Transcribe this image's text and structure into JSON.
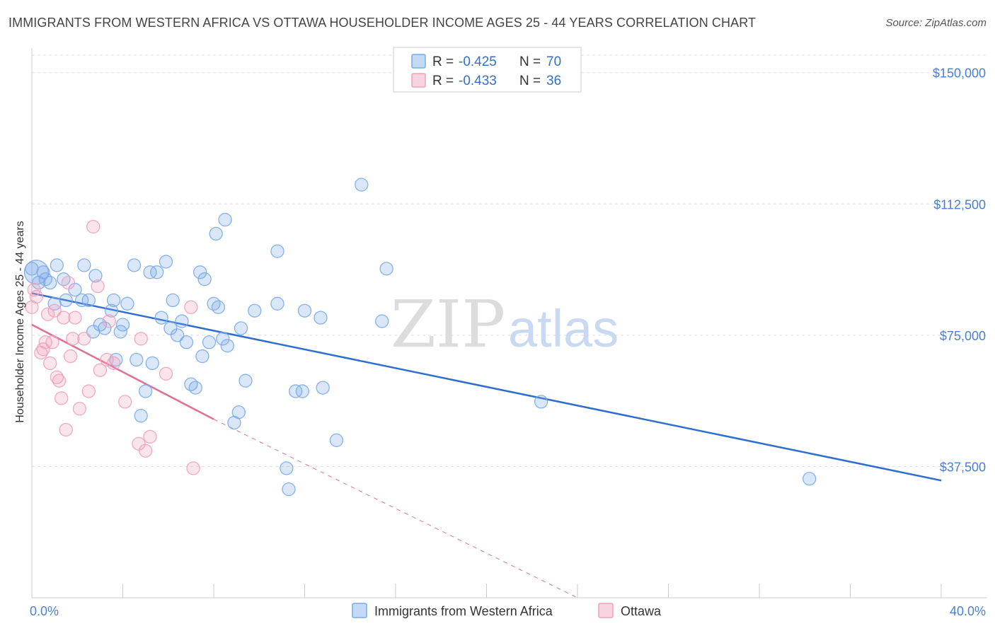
{
  "title": "IMMIGRANTS FROM WESTERN AFRICA VS OTTAWA HOUSEHOLDER INCOME AGES 25 - 44 YEARS CORRELATION CHART",
  "source": "Source: ZipAtlas.com",
  "watermark": {
    "zip": "ZIP",
    "atlas": "atlas"
  },
  "chart_data": {
    "type": "scatter",
    "title": "IMMIGRANTS FROM WESTERN AFRICA VS OTTAWA HOUSEHOLDER INCOME AGES 25 - 44 YEARS CORRELATION CHART",
    "xlabel": "",
    "ylabel": "Householder Income Ages 25 - 44 years",
    "xlim": [
      0,
      40
    ],
    "ylim": [
      0,
      155000
    ],
    "x_tick_labels": [
      "0.0%",
      "40.0%"
    ],
    "y_ticks": [
      37500,
      75000,
      112500,
      150000
    ],
    "y_tick_labels": [
      "$37,500",
      "$75,000",
      "$112,500",
      "$150,000"
    ],
    "grid": true,
    "legend_position": "top-center",
    "stats": [
      {
        "r_label": "R = ",
        "r_value": "-0.425",
        "n_label": "N = ",
        "n_value": "70"
      },
      {
        "r_label": "R = ",
        "r_value": "-0.433",
        "n_label": "N = ",
        "n_value": "36"
      }
    ],
    "series": [
      {
        "name": "Immigrants from Western Africa",
        "color": "#7aaae8",
        "line_color": "#2f6fcc",
        "trend": {
          "x": [
            0,
            40
          ],
          "y": [
            87000,
            33500
          ]
        },
        "points": [
          [
            0.0,
            94000
          ],
          [
            0.3,
            90000
          ],
          [
            0.5,
            93000
          ],
          [
            0.6,
            91000
          ],
          [
            0.8,
            90000
          ],
          [
            1.0,
            84000
          ],
          [
            1.1,
            95000
          ],
          [
            1.4,
            91000
          ],
          [
            1.5,
            85000
          ],
          [
            1.9,
            88000
          ],
          [
            2.2,
            85000
          ],
          [
            2.3,
            95000
          ],
          [
            2.5,
            85000
          ],
          [
            2.7,
            76000
          ],
          [
            2.8,
            92000
          ],
          [
            3.0,
            78000
          ],
          [
            3.2,
            77000
          ],
          [
            3.5,
            82000
          ],
          [
            3.6,
            85000
          ],
          [
            3.7,
            68000
          ],
          [
            3.9,
            76000
          ],
          [
            4.0,
            78000
          ],
          [
            4.2,
            84000
          ],
          [
            4.5,
            95000
          ],
          [
            4.6,
            68000
          ],
          [
            4.8,
            52000
          ],
          [
            5.0,
            59000
          ],
          [
            5.2,
            93000
          ],
          [
            5.3,
            67000
          ],
          [
            5.5,
            93000
          ],
          [
            5.7,
            80000
          ],
          [
            5.9,
            96000
          ],
          [
            6.1,
            77000
          ],
          [
            6.2,
            85000
          ],
          [
            6.4,
            75000
          ],
          [
            6.6,
            79000
          ],
          [
            6.8,
            73000
          ],
          [
            7.0,
            61000
          ],
          [
            7.2,
            60000
          ],
          [
            7.4,
            93000
          ],
          [
            7.5,
            69000
          ],
          [
            7.6,
            91000
          ],
          [
            7.8,
            73000
          ],
          [
            8.0,
            84000
          ],
          [
            8.1,
            104000
          ],
          [
            8.2,
            83000
          ],
          [
            8.4,
            74000
          ],
          [
            8.5,
            108000
          ],
          [
            8.6,
            72000
          ],
          [
            8.9,
            50000
          ],
          [
            9.1,
            53000
          ],
          [
            9.2,
            77000
          ],
          [
            9.4,
            62000
          ],
          [
            9.8,
            82000
          ],
          [
            10.8,
            99000
          ],
          [
            10.8,
            84000
          ],
          [
            11.2,
            37000
          ],
          [
            11.3,
            31000
          ],
          [
            11.6,
            59000
          ],
          [
            11.9,
            59000
          ],
          [
            12.0,
            82000
          ],
          [
            12.7,
            80000
          ],
          [
            12.8,
            60000
          ],
          [
            13.4,
            45000
          ],
          [
            14.5,
            118000
          ],
          [
            15.4,
            79000
          ],
          [
            15.6,
            94000
          ],
          [
            22.4,
            56000
          ],
          [
            34.2,
            34000
          ],
          [
            0.2,
            93000
          ]
        ]
      },
      {
        "name": "Ottawa",
        "color": "#f0a0bc",
        "line_color": "#e07098",
        "trend": {
          "x": [
            0,
            8
          ],
          "y": [
            78000,
            51000
          ]
        },
        "trend_extension": {
          "x": [
            8,
            24
          ],
          "y": [
            51000,
            0
          ]
        },
        "points": [
          [
            0.0,
            83000
          ],
          [
            0.2,
            86000
          ],
          [
            0.4,
            70000
          ],
          [
            0.5,
            71000
          ],
          [
            0.6,
            73000
          ],
          [
            0.7,
            81000
          ],
          [
            0.8,
            67000
          ],
          [
            0.9,
            73000
          ],
          [
            1.0,
            82000
          ],
          [
            1.1,
            63000
          ],
          [
            1.2,
            62000
          ],
          [
            1.3,
            57000
          ],
          [
            1.4,
            80000
          ],
          [
            1.5,
            48000
          ],
          [
            1.6,
            90000
          ],
          [
            1.7,
            69000
          ],
          [
            1.8,
            74000
          ],
          [
            1.9,
            80000
          ],
          [
            2.1,
            54000
          ],
          [
            2.3,
            74000
          ],
          [
            2.5,
            59000
          ],
          [
            2.7,
            106000
          ],
          [
            2.9,
            89000
          ],
          [
            3.0,
            65000
          ],
          [
            3.3,
            68000
          ],
          [
            3.4,
            79000
          ],
          [
            3.6,
            67000
          ],
          [
            4.1,
            56000
          ],
          [
            4.7,
            44000
          ],
          [
            4.8,
            74000
          ],
          [
            5.0,
            42000
          ],
          [
            5.2,
            46000
          ],
          [
            5.9,
            64000
          ],
          [
            7.0,
            83000
          ],
          [
            7.1,
            37000
          ],
          [
            0.1,
            88000
          ]
        ]
      }
    ]
  }
}
